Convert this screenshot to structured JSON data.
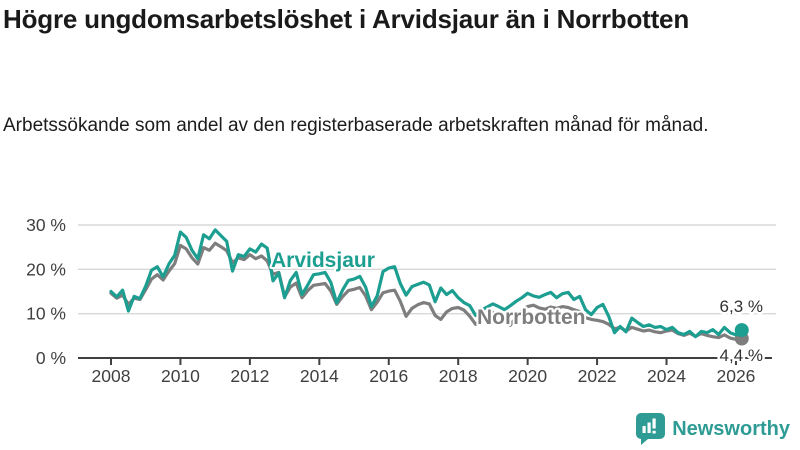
{
  "title": "Högre ungdomsarbetslöshet i Arvidsjaur än i Norrbotten",
  "subtitle": "Arbetssökande som andel av den registerbaserade arbetskraften månad för månad.",
  "branding": {
    "logo_text": "Newsworthy",
    "logo_icon": "bar-chart-speech-bubble-icon"
  },
  "colors": {
    "arvidsjaur": "#1C9E91",
    "norrbotten": "#7E7E7E",
    "grid": "#D8D8D8",
    "axis": "#404040",
    "text": "#333333",
    "title": "#1A1A1A",
    "logo": "#2E9C94"
  },
  "chart_data": {
    "type": "line",
    "title": "Högre ungdomsarbetslöshet i Arvidsjaur än i Norrbotten",
    "xlabel": "",
    "ylabel": "",
    "grid": "horizontal",
    "legend_position": "inline-labels",
    "x_start": 2008.0,
    "x_step_years": 0.16667,
    "x_axis": {
      "ticks": [
        2008,
        2010,
        2012,
        2014,
        2016,
        2018,
        2020,
        2022,
        2024,
        2026
      ]
    },
    "y_axis": {
      "range": [
        0,
        31.5
      ],
      "ticks": [
        {
          "value": 30,
          "label": "30 %"
        },
        {
          "value": 20,
          "label": "20 %"
        },
        {
          "value": 10,
          "label": "10 %"
        },
        {
          "value": 0,
          "label": "0 %"
        }
      ]
    },
    "series": [
      {
        "name": "Arvidsjaur",
        "color": "#1C9E91",
        "end_label": "6,3 %",
        "end_value": 6.3,
        "values": [
          15.0,
          13.8,
          15.3,
          10.6,
          13.9,
          13.4,
          16.2,
          19.8,
          20.6,
          18.3,
          21.2,
          23.2,
          28.4,
          27.2,
          24.3,
          22.4,
          27.8,
          26.9,
          28.9,
          27.6,
          26.3,
          19.6,
          23.3,
          22.9,
          24.6,
          23.9,
          25.7,
          24.8,
          17.4,
          19.2,
          13.6,
          17.5,
          19.3,
          14.3,
          16.5,
          18.8,
          19.0,
          19.3,
          17.0,
          12.4,
          15.3,
          17.5,
          17.8,
          18.4,
          16.0,
          11.6,
          14.0,
          19.5,
          20.3,
          20.6,
          16.8,
          14.2,
          16.1,
          16.6,
          17.1,
          16.5,
          12.7,
          15.8,
          14.3,
          15.2,
          13.6,
          12.5,
          11.8,
          9.6,
          10.8,
          11.5,
          12.2,
          11.6,
          10.9,
          11.8,
          12.8,
          13.6,
          14.6,
          14.0,
          13.7,
          14.3,
          14.8,
          13.6,
          14.5,
          14.8,
          13.2,
          13.9,
          10.9,
          9.8,
          11.4,
          12.1,
          9.4,
          5.7,
          7.1,
          5.9,
          9.0,
          8.0,
          7.1,
          7.5,
          6.9,
          7.1,
          6.4,
          6.9,
          5.7,
          5.3,
          6.0,
          4.8,
          6.0,
          5.7,
          6.4,
          5.3,
          6.9,
          5.7,
          5.2,
          6.3
        ]
      },
      {
        "name": "Norrbotten",
        "color": "#7E7E7E",
        "end_label": "4,4 %",
        "end_value": 4.4,
        "values": [
          14.6,
          13.5,
          14.2,
          12.1,
          13.5,
          13.2,
          15.4,
          17.8,
          18.8,
          17.6,
          19.6,
          21.3,
          25.4,
          24.6,
          22.6,
          21.2,
          24.9,
          24.3,
          25.9,
          25.1,
          24.2,
          21.5,
          22.6,
          22.2,
          23.3,
          22.4,
          23.0,
          21.9,
          18.9,
          19.3,
          13.8,
          16.0,
          16.9,
          13.6,
          15.2,
          16.4,
          16.6,
          16.8,
          15.1,
          12.1,
          13.8,
          15.2,
          15.5,
          15.9,
          14.0,
          10.9,
          12.6,
          14.7,
          15.1,
          15.3,
          12.8,
          9.4,
          11.2,
          12.0,
          12.5,
          12.2,
          9.6,
          8.7,
          10.4,
          11.2,
          11.4,
          10.8,
          9.4,
          7.6,
          8.8,
          9.6,
          10.2,
          9.8,
          8.4,
          7.4,
          9.2,
          10.6,
          11.6,
          11.9,
          11.3,
          11.0,
          11.5,
          11.2,
          11.6,
          11.4,
          10.9,
          10.5,
          9.1,
          8.7,
          8.5,
          8.2,
          7.6,
          6.6,
          6.9,
          6.1,
          6.9,
          6.5,
          6.1,
          6.3,
          5.9,
          5.7,
          6.1,
          6.3,
          5.5,
          5.1,
          5.6,
          4.9,
          5.5,
          5.1,
          4.8,
          4.6,
          5.2,
          4.5,
          4.2,
          4.4
        ]
      }
    ]
  }
}
